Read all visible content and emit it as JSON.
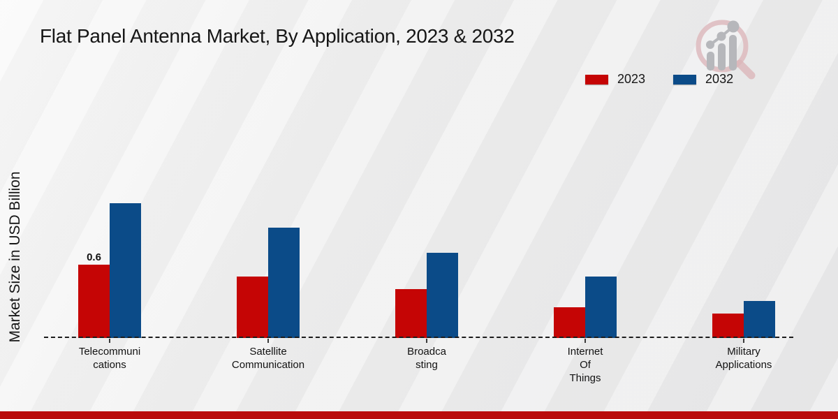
{
  "chart_data": {
    "type": "bar",
    "title": "Flat Panel Antenna Market, By Application, 2023 & 2032",
    "ylabel": "Market Size in USD Billion",
    "xlabel": "",
    "categories": [
      "Telecommunications",
      "Satellite Communication",
      "Broadcasting",
      "Internet Of Things",
      "Military Applications"
    ],
    "category_label_lines": [
      [
        "Telecommuni",
        "cations"
      ],
      [
        "Satellite",
        "Communication"
      ],
      [
        "Broadca",
        "sting"
      ],
      [
        "Internet",
        "Of",
        "Things"
      ],
      [
        "Military",
        "Applications"
      ]
    ],
    "series": [
      {
        "name": "2023",
        "color": "#c50505",
        "values": [
          0.6,
          0.5,
          0.4,
          0.25,
          0.2
        ]
      },
      {
        "name": "2032",
        "color": "#0b4b88",
        "values": [
          1.1,
          0.9,
          0.7,
          0.5,
          0.3
        ]
      }
    ],
    "value_labels": [
      {
        "series": 0,
        "index": 0,
        "text": "0.6"
      }
    ],
    "ylim": [
      0,
      1.2
    ],
    "grid": false,
    "legend_position": "top-right",
    "baseline_style": "dashed"
  },
  "branding": {
    "logo": "magnifier-bar-chart-logo",
    "footer_bar_color": "#b90c0c",
    "accent_red": "#c50505",
    "accent_blue": "#0b4b88"
  }
}
